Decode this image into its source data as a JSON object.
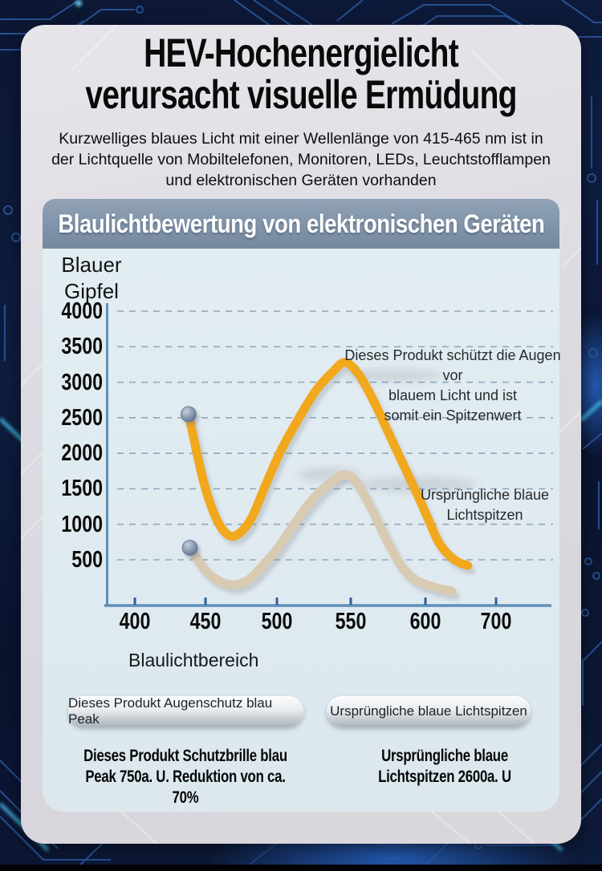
{
  "header": {
    "title_line1": "HEV-Hochenergielicht",
    "title_line2": "verursacht visuelle Ermüdung",
    "subtitle": "Kurzwelliges blaues Licht mit einer Wellenlänge von 415-465 nm ist in\nder Lichtquelle von Mobiltelefonen, Monitoren, LEDs, Leuchtstofflampen\nund elektronischen Geräten vorhanden"
  },
  "banner": {
    "label": "Blaulichtbewertung von elektronischen Geräten"
  },
  "chart_data": {
    "type": "line",
    "title": "Blaulichtbewertung von elektronischen Geräten",
    "ylabel": "Blauer\nGipfel",
    "xlabel": "Blaulichtbereich",
    "y_ticks": [
      4000,
      3500,
      3000,
      2500,
      2000,
      1500,
      1000,
      500
    ],
    "x_ticks": [
      400,
      450,
      500,
      550,
      600,
      700
    ],
    "ylim": [
      0,
      4000
    ],
    "grid": "dashed-horizontal",
    "legend_position": "below-chart",
    "annotations": [
      {
        "text": "Dieses Produkt schützt die Augen vor\nblauem Licht und ist\nsomit ein Spitzenwert",
        "target_series": "Dieses Produkt Augenschutz blau Peak"
      },
      {
        "text": "Ursprüngliche blaue\nLichtspitzen",
        "target_series": "Ursprüngliche blaue Lichtspitzen"
      }
    ],
    "series": [
      {
        "name": "Dieses Produkt Augenschutz blau Peak",
        "color": "#f2a81d",
        "start_marker": true,
        "peak": 3280,
        "points": [
          [
            438,
            2550
          ],
          [
            448,
            1650
          ],
          [
            456,
            1150
          ],
          [
            464,
            880
          ],
          [
            472,
            850
          ],
          [
            482,
            1080
          ],
          [
            492,
            1550
          ],
          [
            503,
            2050
          ],
          [
            515,
            2500
          ],
          [
            527,
            2900
          ],
          [
            538,
            3150
          ],
          [
            546,
            3280
          ],
          [
            555,
            3120
          ],
          [
            565,
            2750
          ],
          [
            575,
            2300
          ],
          [
            585,
            1850
          ],
          [
            595,
            1400
          ],
          [
            605,
            1050
          ],
          [
            618,
            760
          ],
          [
            632,
            580
          ],
          [
            646,
            470
          ],
          [
            660,
            420
          ]
        ]
      },
      {
        "name": "Ursprüngliche blaue Lichtspitzen",
        "color": "#d9cab2",
        "start_marker": true,
        "peak": 1700,
        "points": [
          [
            439,
            670
          ],
          [
            450,
            350
          ],
          [
            460,
            200
          ],
          [
            470,
            150
          ],
          [
            480,
            220
          ],
          [
            490,
            420
          ],
          [
            500,
            650
          ],
          [
            510,
            950
          ],
          [
            522,
            1300
          ],
          [
            534,
            1550
          ],
          [
            547,
            1700
          ],
          [
            556,
            1520
          ],
          [
            566,
            1130
          ],
          [
            576,
            700
          ],
          [
            585,
            380
          ],
          [
            594,
            210
          ],
          [
            605,
            140
          ],
          [
            618,
            100
          ],
          [
            637,
            60
          ]
        ]
      }
    ]
  },
  "legend": [
    {
      "label": "Dieses Produkt Augenschutz blau Peak"
    },
    {
      "label": "Ursprüngliche blaue Lichtspitzen"
    }
  ],
  "footnotes": [
    {
      "text": "Dieses Produkt Schutzbrille blau\nPeak 750a. U. Reduktion von ca. 70%"
    },
    {
      "text": "Ursprüngliche blaue\nLichtspitzen 2600a. U"
    }
  ],
  "colors": {
    "background": "#0e1c3c",
    "card": "#dcdde2",
    "banner_bg": "#8396ab",
    "panel_bg": "#e1ecf1",
    "axis": "#5e8fb8",
    "tick": "#2f5f94",
    "grid": "#7e96ae",
    "series_product": "#f2a81d",
    "series_original": "#d9cab2",
    "marker": "#8c9cb4",
    "accent_glow": "#4ac8f4",
    "circuit": "#2c5aa0"
  }
}
